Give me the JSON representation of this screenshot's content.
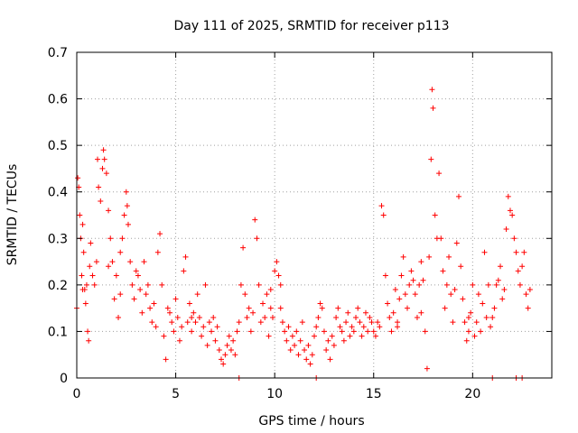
{
  "chart_data": {
    "type": "scatter",
    "title": "Day 111 of 2025, SRMTID for receiver p113",
    "xlabel": "GPS time / hours",
    "ylabel": "SRMTID / TECUs",
    "xlim": [
      0,
      24
    ],
    "ylim": [
      0,
      0.7
    ],
    "x_ticks": [
      0,
      5,
      10,
      15,
      20
    ],
    "x_tick_labels": [
      "0",
      "5",
      "10",
      "15",
      "20"
    ],
    "y_ticks": [
      0,
      0.1,
      0.2,
      0.3,
      0.4,
      0.5,
      0.6,
      0.7
    ],
    "y_tick_labels": [
      "0",
      "0.1",
      "0.2",
      "0.3",
      "0.4",
      "0.5",
      "0.6",
      "0.7"
    ],
    "grid": true,
    "marker": "+",
    "color": "#ff0000",
    "series": [
      {
        "name": "SRMTID",
        "points": [
          [
            0.0,
            0.15
          ],
          [
            0.05,
            0.43
          ],
          [
            0.1,
            0.41
          ],
          [
            0.15,
            0.35
          ],
          [
            0.2,
            0.3
          ],
          [
            0.25,
            0.22
          ],
          [
            0.3,
            0.33
          ],
          [
            0.35,
            0.27
          ],
          [
            0.4,
            0.19
          ],
          [
            0.45,
            0.16
          ],
          [
            0.5,
            0.2
          ],
          [
            0.55,
            0.1
          ],
          [
            0.6,
            0.08
          ],
          [
            0.65,
            0.24
          ],
          [
            0.7,
            0.29
          ],
          [
            0.8,
            0.22
          ],
          [
            0.9,
            0.2
          ],
          [
            1.0,
            0.25
          ],
          [
            1.05,
            0.47
          ],
          [
            1.1,
            0.41
          ],
          [
            1.2,
            0.38
          ],
          [
            1.3,
            0.45
          ],
          [
            1.35,
            0.49
          ],
          [
            1.4,
            0.47
          ],
          [
            1.5,
            0.44
          ],
          [
            1.6,
            0.36
          ],
          [
            1.7,
            0.3
          ],
          [
            1.8,
            0.25
          ],
          [
            1.9,
            0.17
          ],
          [
            2.0,
            0.22
          ],
          [
            2.1,
            0.13
          ],
          [
            2.2,
            0.27
          ],
          [
            2.3,
            0.3
          ],
          [
            2.4,
            0.35
          ],
          [
            2.5,
            0.4
          ],
          [
            2.55,
            0.37
          ],
          [
            2.6,
            0.33
          ],
          [
            2.7,
            0.25
          ],
          [
            2.8,
            0.2
          ],
          [
            2.9,
            0.17
          ],
          [
            3.0,
            0.23
          ],
          [
            3.1,
            0.22
          ],
          [
            3.2,
            0.19
          ],
          [
            3.3,
            0.14
          ],
          [
            3.4,
            0.25
          ],
          [
            3.5,
            0.18
          ],
          [
            3.6,
            0.2
          ],
          [
            3.7,
            0.15
          ],
          [
            3.8,
            0.12
          ],
          [
            3.9,
            0.16
          ],
          [
            4.0,
            0.11
          ],
          [
            4.1,
            0.27
          ],
          [
            4.2,
            0.31
          ],
          [
            4.3,
            0.2
          ],
          [
            4.4,
            0.09
          ],
          [
            4.5,
            0.04
          ],
          [
            4.6,
            0.15
          ],
          [
            4.7,
            0.14
          ],
          [
            4.8,
            0.12
          ],
          [
            4.9,
            0.1
          ],
          [
            5.0,
            0.17
          ],
          [
            5.1,
            0.13
          ],
          [
            5.2,
            0.08
          ],
          [
            5.3,
            0.11
          ],
          [
            5.4,
            0.23
          ],
          [
            5.5,
            0.26
          ],
          [
            5.6,
            0.12
          ],
          [
            5.7,
            0.16
          ],
          [
            5.8,
            0.1
          ],
          [
            5.9,
            0.14
          ],
          [
            6.0,
            0.12
          ],
          [
            6.1,
            0.18
          ],
          [
            6.2,
            0.13
          ],
          [
            6.3,
            0.09
          ],
          [
            6.4,
            0.11
          ],
          [
            6.5,
            0.2
          ],
          [
            6.6,
            0.07
          ],
          [
            6.7,
            0.12
          ],
          [
            6.8,
            0.1
          ],
          [
            6.9,
            0.13
          ],
          [
            7.0,
            0.08
          ],
          [
            7.1,
            0.11
          ],
          [
            7.2,
            0.06
          ],
          [
            7.3,
            0.04
          ],
          [
            7.4,
            0.03
          ],
          [
            7.5,
            0.05
          ],
          [
            7.6,
            0.07
          ],
          [
            7.7,
            0.09
          ],
          [
            7.8,
            0.06
          ],
          [
            7.9,
            0.08
          ],
          [
            8.0,
            0.05
          ],
          [
            8.1,
            0.1
          ],
          [
            8.2,
            0.12
          ],
          [
            8.3,
            0.2
          ],
          [
            8.4,
            0.28
          ],
          [
            8.5,
            0.18
          ],
          [
            8.6,
            0.13
          ],
          [
            8.7,
            0.15
          ],
          [
            8.8,
            0.1
          ],
          [
            8.9,
            0.14
          ],
          [
            9.0,
            0.34
          ],
          [
            9.1,
            0.3
          ],
          [
            9.2,
            0.2
          ],
          [
            9.3,
            0.12
          ],
          [
            9.4,
            0.16
          ],
          [
            9.5,
            0.13
          ],
          [
            9.6,
            0.18
          ],
          [
            9.7,
            0.09
          ],
          [
            9.8,
            0.15
          ],
          [
            9.9,
            0.13
          ],
          [
            10.0,
            0.23
          ],
          [
            10.1,
            0.25
          ],
          [
            10.2,
            0.22
          ],
          [
            10.3,
            0.2
          ],
          [
            10.4,
            0.12
          ],
          [
            10.5,
            0.1
          ],
          [
            10.6,
            0.08
          ],
          [
            10.7,
            0.11
          ],
          [
            10.8,
            0.06
          ],
          [
            10.9,
            0.09
          ],
          [
            11.0,
            0.07
          ],
          [
            11.1,
            0.1
          ],
          [
            11.2,
            0.05
          ],
          [
            11.3,
            0.08
          ],
          [
            11.4,
            0.12
          ],
          [
            11.5,
            0.06
          ],
          [
            11.6,
            0.04
          ],
          [
            11.7,
            0.07
          ],
          [
            11.8,
            0.03
          ],
          [
            11.9,
            0.05
          ],
          [
            12.0,
            0.09
          ],
          [
            12.1,
            0.11
          ],
          [
            12.2,
            0.13
          ],
          [
            12.3,
            0.16
          ],
          [
            12.4,
            0.15
          ],
          [
            12.5,
            0.1
          ],
          [
            12.6,
            0.06
          ],
          [
            12.7,
            0.08
          ],
          [
            12.8,
            0.04
          ],
          [
            12.9,
            0.09
          ],
          [
            13.0,
            0.07
          ],
          [
            13.1,
            0.13
          ],
          [
            13.2,
            0.15
          ],
          [
            13.3,
            0.11
          ],
          [
            13.4,
            0.1
          ],
          [
            13.5,
            0.08
          ],
          [
            13.6,
            0.12
          ],
          [
            13.7,
            0.14
          ],
          [
            13.8,
            0.09
          ],
          [
            13.9,
            0.11
          ],
          [
            14.0,
            0.1
          ],
          [
            14.1,
            0.13
          ],
          [
            14.2,
            0.15
          ],
          [
            14.3,
            0.12
          ],
          [
            14.4,
            0.09
          ],
          [
            14.5,
            0.11
          ],
          [
            14.6,
            0.14
          ],
          [
            14.7,
            0.1
          ],
          [
            14.8,
            0.13
          ],
          [
            14.9,
            0.12
          ],
          [
            15.0,
            0.1
          ],
          [
            15.1,
            0.09
          ],
          [
            15.2,
            0.12
          ],
          [
            15.3,
            0.11
          ],
          [
            15.4,
            0.37
          ],
          [
            15.5,
            0.35
          ],
          [
            15.6,
            0.22
          ],
          [
            15.7,
            0.16
          ],
          [
            15.8,
            0.13
          ],
          [
            15.9,
            0.1
          ],
          [
            16.0,
            0.14
          ],
          [
            16.1,
            0.19
          ],
          [
            16.2,
            0.12
          ],
          [
            16.3,
            0.17
          ],
          [
            16.4,
            0.22
          ],
          [
            16.5,
            0.26
          ],
          [
            16.6,
            0.18
          ],
          [
            16.7,
            0.15
          ],
          [
            16.8,
            0.2
          ],
          [
            16.9,
            0.23
          ],
          [
            17.0,
            0.21
          ],
          [
            17.1,
            0.18
          ],
          [
            17.2,
            0.13
          ],
          [
            17.3,
            0.2
          ],
          [
            17.4,
            0.25
          ],
          [
            17.5,
            0.21
          ],
          [
            17.6,
            0.1
          ],
          [
            17.7,
            0.02
          ],
          [
            17.8,
            0.26
          ],
          [
            17.9,
            0.47
          ],
          [
            17.95,
            0.62
          ],
          [
            18.0,
            0.58
          ],
          [
            18.1,
            0.35
          ],
          [
            18.2,
            0.3
          ],
          [
            18.3,
            0.44
          ],
          [
            18.4,
            0.3
          ],
          [
            18.5,
            0.23
          ],
          [
            18.6,
            0.15
          ],
          [
            18.7,
            0.2
          ],
          [
            18.8,
            0.26
          ],
          [
            18.9,
            0.18
          ],
          [
            19.0,
            0.12
          ],
          [
            19.1,
            0.19
          ],
          [
            19.2,
            0.29
          ],
          [
            19.3,
            0.39
          ],
          [
            19.4,
            0.24
          ],
          [
            19.5,
            0.17
          ],
          [
            19.6,
            0.12
          ],
          [
            19.7,
            0.08
          ],
          [
            19.8,
            0.1
          ],
          [
            19.9,
            0.14
          ],
          [
            20.0,
            0.2
          ],
          [
            20.1,
            0.09
          ],
          [
            20.2,
            0.12
          ],
          [
            20.3,
            0.18
          ],
          [
            20.4,
            0.1
          ],
          [
            20.5,
            0.16
          ],
          [
            20.6,
            0.27
          ],
          [
            20.7,
            0.13
          ],
          [
            20.8,
            0.2
          ],
          [
            20.9,
            0.11
          ],
          [
            21.0,
            0.13
          ],
          [
            21.1,
            0.15
          ],
          [
            21.2,
            0.2
          ],
          [
            21.3,
            0.21
          ],
          [
            21.4,
            0.24
          ],
          [
            21.5,
            0.17
          ],
          [
            21.6,
            0.19
          ],
          [
            21.7,
            0.32
          ],
          [
            21.8,
            0.39
          ],
          [
            21.9,
            0.36
          ],
          [
            22.0,
            0.35
          ],
          [
            22.1,
            0.3
          ],
          [
            22.2,
            0.27
          ],
          [
            22.3,
            0.23
          ],
          [
            22.4,
            0.2
          ],
          [
            22.5,
            0.24
          ],
          [
            22.6,
            0.27
          ],
          [
            22.7,
            0.18
          ],
          [
            22.8,
            0.15
          ],
          [
            22.9,
            0.19
          ],
          [
            5.8,
            0.13
          ],
          [
            2.2,
            0.18
          ],
          [
            1.6,
            0.24
          ],
          [
            0.3,
            0.19
          ],
          [
            9.8,
            0.19
          ],
          [
            10.3,
            0.15
          ],
          [
            16.2,
            0.11
          ],
          [
            17.4,
            0.14
          ],
          [
            19.8,
            0.13
          ],
          [
            8.2,
            0.0
          ],
          [
            12.1,
            0.0
          ],
          [
            21.0,
            0.0
          ],
          [
            22.2,
            0.0
          ],
          [
            22.5,
            0.0
          ]
        ]
      }
    ]
  }
}
